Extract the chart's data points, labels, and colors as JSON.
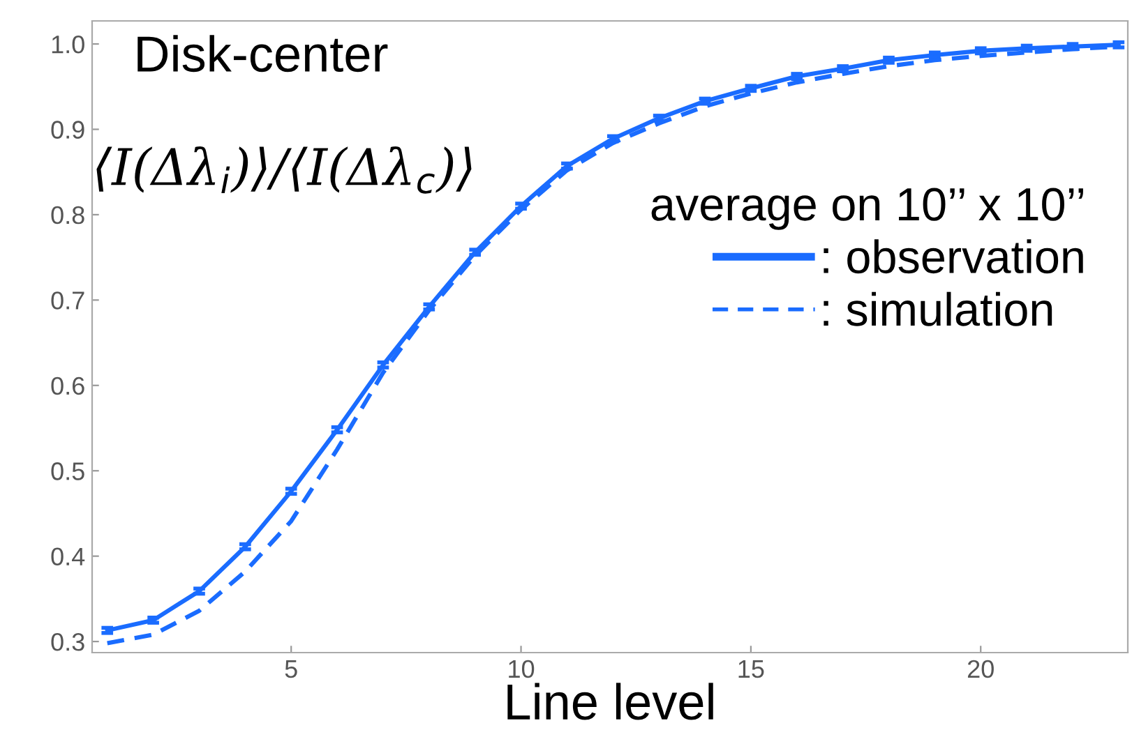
{
  "chart_data": {
    "type": "line",
    "xlabel": "Line level",
    "x": [
      1,
      2,
      3,
      4,
      5,
      6,
      7,
      8,
      9,
      10,
      11,
      12,
      13,
      14,
      15,
      16,
      17,
      18,
      19,
      20,
      21,
      22,
      23
    ],
    "series": [
      {
        "name": ": observation",
        "color": "#1a6cff",
        "line_style": "solid",
        "values": [
          0.313,
          0.325,
          0.359,
          0.411,
          0.476,
          0.548,
          0.624,
          0.692,
          0.756,
          0.81,
          0.857,
          0.889,
          0.913,
          0.933,
          0.948,
          0.962,
          0.971,
          0.981,
          0.987,
          0.992,
          0.995,
          0.997,
          0.999
        ],
        "errors": [
          0.003,
          0.003,
          0.003,
          0.003,
          0.003,
          0.003,
          0.003,
          0.003,
          0.003,
          0.003,
          0.003,
          0.003,
          0.003,
          0.003,
          0.003,
          0.003,
          0.003,
          0.003,
          0.003,
          0.003,
          0.003,
          0.003,
          0.003
        ]
      },
      {
        "name": ": simulation",
        "color": "#1a6cff",
        "line_style": "dashed",
        "values": [
          0.298,
          0.308,
          0.336,
          0.382,
          0.441,
          0.525,
          0.615,
          0.688,
          0.752,
          0.806,
          0.852,
          0.884,
          0.907,
          0.927,
          0.942,
          0.955,
          0.965,
          0.974,
          0.981,
          0.986,
          0.99,
          0.994,
          0.997
        ]
      }
    ],
    "xlim": [
      0.67,
      23.2
    ],
    "ylim": [
      0.287,
      1.027
    ],
    "xticks": [
      5,
      10,
      15,
      20
    ],
    "yticks": [
      {
        "value": 0.3,
        "label": "0.3"
      },
      {
        "value": 0.4,
        "label": "0.4"
      },
      {
        "value": 0.5,
        "label": "0.5"
      },
      {
        "value": 0.6,
        "label": "0.6"
      },
      {
        "value": 0.7,
        "label": "0.7"
      },
      {
        "value": 0.8,
        "label": "0.8"
      },
      {
        "value": 0.9,
        "label": "0.9"
      },
      {
        "value": 1.0,
        "label": "1.0"
      }
    ],
    "grid": false,
    "legend": "center right",
    "legend_title": "average on 10’’ x 10’’",
    "annotations": [
      "Disk-center",
      "⟨I(Δλ$_{i}$)⟩/⟨I(Δλ$_{c}$)⟩"
    ]
  }
}
